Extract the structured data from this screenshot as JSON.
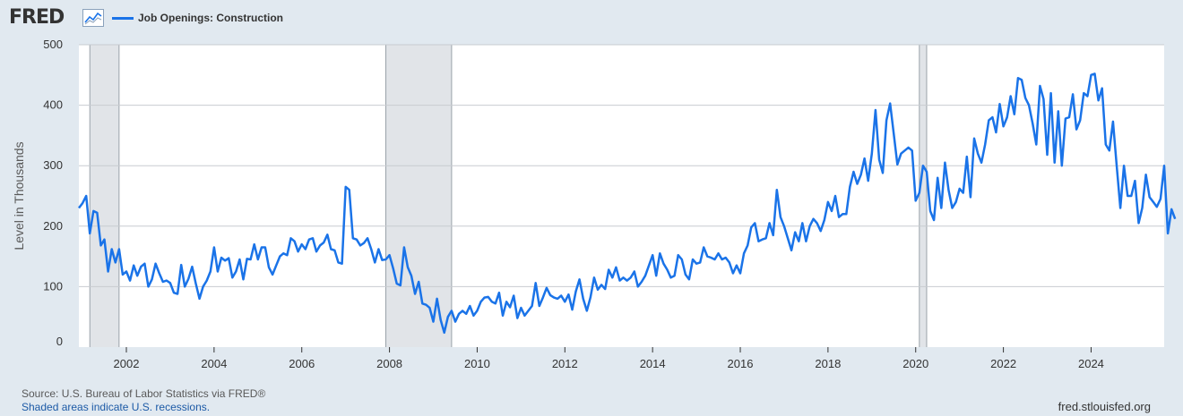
{
  "header": {
    "logo_text": "FRED",
    "logo_icon": "chart-line-icon",
    "series_label": "Job Openings: Construction",
    "series_color": "#1a73e8"
  },
  "footer": {
    "source": "Source: U.S. Bureau of Labor Statistics via FRED®",
    "shading_note": "Shaded areas indicate U.S. recessions.",
    "site": "fred.stlouisfed.org"
  },
  "chart_data": {
    "type": "line",
    "title": "",
    "xlabel": "",
    "ylabel": "Level in Thousands",
    "xlim": [
      "2000-12",
      "2025-09"
    ],
    "ylim": [
      0,
      500
    ],
    "y_ticks": [
      0,
      100,
      200,
      300,
      400,
      500
    ],
    "x_ticks": [
      "2002",
      "2004",
      "2006",
      "2008",
      "2010",
      "2012",
      "2014",
      "2016",
      "2018",
      "2020",
      "2022",
      "2024"
    ],
    "grid": true,
    "legend_placement": "top-left",
    "recessions": [
      {
        "start": "2001-03",
        "end": "2001-11"
      },
      {
        "start": "2007-12",
        "end": "2009-06"
      },
      {
        "start": "2020-02",
        "end": "2020-04"
      }
    ],
    "series": [
      {
        "name": "Job Openings: Construction",
        "color": "#1a73e8",
        "start": "2000-12",
        "frequency": "monthly",
        "values": [
          230,
          238,
          250,
          188,
          225,
          222,
          168,
          178,
          125,
          162,
          140,
          162,
          120,
          125,
          110,
          135,
          118,
          133,
          138,
          100,
          112,
          138,
          122,
          108,
          110,
          106,
          90,
          88,
          136,
          100,
          113,
          133,
          105,
          80,
          100,
          110,
          125,
          165,
          125,
          148,
          143,
          147,
          115,
          125,
          145,
          112,
          146,
          145,
          170,
          145,
          165,
          165,
          132,
          120,
          135,
          150,
          155,
          152,
          180,
          175,
          158,
          170,
          162,
          178,
          180,
          158,
          168,
          173,
          186,
          162,
          160,
          140,
          138,
          265,
          260,
          180,
          178,
          168,
          172,
          180,
          162,
          140,
          162,
          144,
          145,
          152,
          130,
          105,
          102,
          165,
          132,
          118,
          88,
          108,
          72,
          70,
          65,
          42,
          80,
          45,
          24,
          50,
          60,
          42,
          55,
          60,
          55,
          68,
          52,
          60,
          75,
          82,
          83,
          75,
          72,
          90,
          52,
          75,
          66,
          85,
          48,
          65,
          52,
          60,
          68,
          106,
          68,
          82,
          98,
          86,
          82,
          80,
          85,
          75,
          87,
          62,
          92,
          112,
          80,
          60,
          82,
          115,
          95,
          103,
          96,
          128,
          115,
          132,
          110,
          115,
          110,
          115,
          125,
          100,
          108,
          118,
          135,
          152,
          118,
          155,
          138,
          128,
          115,
          118,
          152,
          145,
          120,
          112,
          145,
          138,
          140,
          165,
          150,
          148,
          145,
          155,
          145,
          148,
          140,
          122,
          135,
          122,
          155,
          168,
          198,
          205,
          175,
          178,
          180,
          205,
          185,
          260,
          215,
          200,
          180,
          160,
          190,
          175,
          205,
          175,
          200,
          212,
          205,
          192,
          210,
          240,
          225,
          250,
          215,
          220,
          220,
          265,
          290,
          270,
          285,
          312,
          275,
          320,
          392,
          310,
          288,
          375,
          403,
          352,
          302,
          320,
          325,
          330,
          325,
          242,
          255,
          300,
          290,
          225,
          210,
          280,
          230,
          305,
          260,
          230,
          240,
          262,
          255,
          315,
          248,
          345,
          320,
          305,
          335,
          375,
          380,
          355,
          402,
          365,
          380,
          415,
          385,
          445,
          442,
          412,
          400,
          370,
          335,
          432,
          410,
          318,
          420,
          305,
          390,
          300,
          378,
          380,
          418,
          360,
          375,
          420,
          415,
          450,
          452,
          408,
          428,
          335,
          325,
          373,
          300,
          230,
          300,
          250,
          250,
          275,
          205,
          230,
          285,
          248,
          240,
          232,
          245,
          300,
          188,
          228,
          212
        ]
      }
    ]
  }
}
